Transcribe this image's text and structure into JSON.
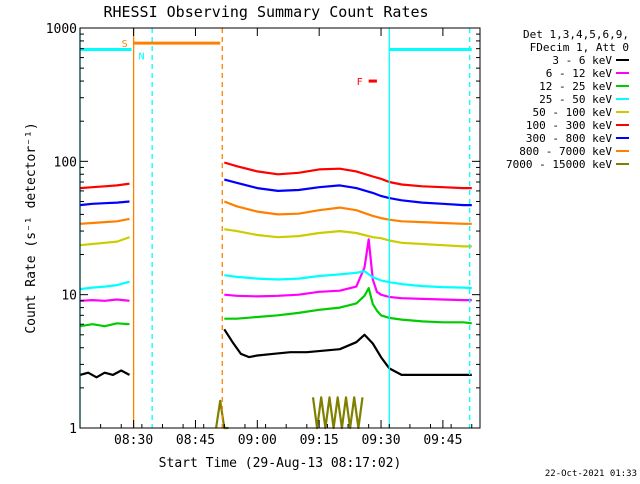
{
  "chart_data": {
    "type": "line",
    "title": "RHESSI Observing Summary Count Rates",
    "xlabel": "Start Time (29-Aug-13 08:17:02)",
    "ylabel": "Count Rate (s⁻¹ detector⁻¹)",
    "yscale": "log",
    "ylim": [
      1,
      1000
    ],
    "xlim": [
      "08:17",
      "09:54"
    ],
    "x_ticks": [
      {
        "label": "08:30",
        "min": 30
      },
      {
        "label": "08:45",
        "min": 45
      },
      {
        "label": "09:00",
        "min": 60
      },
      {
        "label": "09:15",
        "min": 75
      },
      {
        "label": "09:30",
        "min": 90
      },
      {
        "label": "09:45",
        "min": 105
      }
    ],
    "y_ticks": [
      "1",
      "10",
      "100",
      "1000"
    ],
    "legend": {
      "placement": "top-right outside",
      "header_lines": [
        "Det 1,3,4,5,6,9,",
        "FDecim 1, Att 0"
      ]
    },
    "series": [
      {
        "name": "3 - 6 keV",
        "color": "#000000",
        "segments": [
          {
            "x": [
              17,
              19,
              21,
              23,
              25,
              27,
              29
            ],
            "y": [
              2.5,
              2.6,
              2.4,
              2.6,
              2.5,
              2.7,
              2.5
            ]
          },
          {
            "x": [
              52,
              54,
              56,
              58,
              60,
              64,
              68,
              72,
              76,
              80,
              84,
              86,
              88,
              90,
              92,
              95,
              100,
              105,
              110,
              112
            ],
            "y": [
              5.5,
              4.4,
              3.6,
              3.4,
              3.5,
              3.6,
              3.7,
              3.7,
              3.8,
              3.9,
              4.4,
              5.0,
              4.3,
              3.4,
              2.8,
              2.5,
              2.5,
              2.5,
              2.5,
              2.5
            ]
          }
        ]
      },
      {
        "name": "6 - 12 keV",
        "color": "#ff00ff",
        "segments": [
          {
            "x": [
              17,
              20,
              23,
              26,
              29
            ],
            "y": [
              9.0,
              9.1,
              9.0,
              9.2,
              9.0
            ]
          },
          {
            "x": [
              52,
              55,
              60,
              65,
              70,
              75,
              80,
              84,
              86,
              87,
              88,
              89,
              90,
              92,
              95,
              100,
              105,
              110,
              112
            ],
            "y": [
              10.0,
              9.8,
              9.7,
              9.8,
              10.0,
              10.5,
              10.7,
              11.5,
              16.0,
              26.0,
              13.0,
              10.5,
              10.0,
              9.6,
              9.4,
              9.3,
              9.2,
              9.1,
              9.1
            ]
          }
        ]
      },
      {
        "name": "12 - 25 keV",
        "color": "#00cc00",
        "segments": [
          {
            "x": [
              17,
              20,
              23,
              26,
              29
            ],
            "y": [
              5.8,
              6.0,
              5.8,
              6.1,
              6.0
            ]
          },
          {
            "x": [
              52,
              55,
              60,
              65,
              70,
              75,
              80,
              84,
              86,
              87,
              88,
              89,
              90,
              92,
              95,
              100,
              105,
              110,
              112
            ],
            "y": [
              6.6,
              6.6,
              6.8,
              7.0,
              7.3,
              7.7,
              8.0,
              8.6,
              9.8,
              11.2,
              8.5,
              7.6,
              7.0,
              6.7,
              6.5,
              6.3,
              6.2,
              6.2,
              6.1
            ]
          }
        ]
      },
      {
        "name": "25 - 50 keV",
        "color": "#00ffff",
        "segments": [
          {
            "x": [
              17,
              20,
              23,
              26,
              29
            ],
            "y": [
              11.0,
              11.3,
              11.5,
              11.8,
              12.5
            ]
          },
          {
            "x": [
              52,
              55,
              60,
              65,
              70,
              75,
              80,
              84,
              86,
              88,
              90,
              92,
              95,
              100,
              105,
              110,
              112
            ],
            "y": [
              14.0,
              13.6,
              13.2,
              13.0,
              13.2,
              13.8,
              14.2,
              14.6,
              15.0,
              13.5,
              12.8,
              12.4,
              12.0,
              11.6,
              11.4,
              11.3,
              11.2
            ]
          }
        ]
      },
      {
        "name": "50 - 100 keV",
        "color": "#cccc00",
        "segments": [
          {
            "x": [
              17,
              20,
              23,
              26,
              29
            ],
            "y": [
              23.5,
              24.0,
              24.5,
              25.0,
              27.0
            ]
          },
          {
            "x": [
              52,
              55,
              60,
              65,
              70,
              75,
              80,
              84,
              88,
              90,
              92,
              95,
              100,
              105,
              110,
              112
            ],
            "y": [
              31.0,
              30.0,
              28.0,
              27.0,
              27.5,
              29.0,
              30.0,
              29.0,
              27.0,
              26.5,
              25.5,
              24.5,
              24.0,
              23.5,
              23.0,
              23.0
            ]
          }
        ]
      },
      {
        "name": "100 - 300 keV",
        "color": "#ff0000",
        "segments": [
          {
            "x": [
              17,
              20,
              23,
              26,
              29
            ],
            "y": [
              63.0,
              64.0,
              65.0,
              66.0,
              68.0
            ]
          },
          {
            "x": [
              52,
              55,
              60,
              65,
              70,
              75,
              80,
              84,
              88,
              90,
              92,
              95,
              100,
              105,
              110,
              112
            ],
            "y": [
              98.0,
              92.0,
              84.0,
              80.0,
              82.0,
              87.0,
              88.0,
              84.0,
              77.0,
              74.0,
              70.0,
              67.0,
              65.0,
              64.0,
              63.0,
              63.0
            ]
          }
        ]
      },
      {
        "name": "300 - 800 keV",
        "color": "#0000ff",
        "segments": [
          {
            "x": [
              17,
              20,
              23,
              26,
              29
            ],
            "y": [
              47.0,
              48.0,
              48.5,
              49.0,
              50.0
            ]
          },
          {
            "x": [
              52,
              55,
              60,
              65,
              70,
              75,
              80,
              84,
              88,
              90,
              92,
              95,
              100,
              105,
              110,
              112
            ],
            "y": [
              73.0,
              69.0,
              63.0,
              60.0,
              61.0,
              64.0,
              66.0,
              63.0,
              58.0,
              55.0,
              53.0,
              51.0,
              49.0,
              48.0,
              47.0,
              47.0
            ]
          }
        ]
      },
      {
        "name": "800 - 7000 keV",
        "color": "#ff8000",
        "segments": [
          {
            "x": [
              17,
              20,
              23,
              26,
              29
            ],
            "y": [
              34.0,
              34.5,
              35.0,
              35.5,
              37.0
            ]
          },
          {
            "x": [
              52,
              55,
              60,
              65,
              70,
              75,
              80,
              84,
              88,
              90,
              92,
              95,
              100,
              105,
              110,
              112
            ],
            "y": [
              50.0,
              46.0,
              42.0,
              40.0,
              40.5,
              43.0,
              45.0,
              43.0,
              39.0,
              37.5,
              36.5,
              35.5,
              35.0,
              34.5,
              34.0,
              34.0
            ]
          }
        ]
      },
      {
        "name": "7000 - 15000 keV",
        "color": "#808000",
        "segments": [
          {
            "x": [
              50,
              51,
              52,
              53
            ],
            "y": [
              1.0,
              1.6,
              1.0,
              1.0
            ]
          },
          {
            "x": [
              73.5,
              74.5,
              75.5,
              76.5,
              77.5,
              78.5,
              79.5,
              80.5,
              81.5,
              82.5,
              83.5,
              84.5,
              85.5
            ],
            "y": [
              1.7,
              1.0,
              1.7,
              1.0,
              1.7,
              1.0,
              1.7,
              1.0,
              1.7,
              1.0,
              1.7,
              1.0,
              1.7
            ]
          }
        ]
      }
    ],
    "flag_bars": [
      {
        "label": "S",
        "color": "#ff8000",
        "y": 770,
        "x": [
          30,
          51
        ]
      },
      {
        "label": "N",
        "color": "#00ffff",
        "y": 690,
        "x": [
          17,
          29.5
        ],
        "x2": [
          92,
          112
        ]
      },
      {
        "label": "F",
        "color": "#ff0000",
        "y": 400,
        "x": [
          87,
          89
        ]
      }
    ],
    "vertical_markers": [
      {
        "color": "#ff8000",
        "style": "solid",
        "x": 30
      },
      {
        "color": "#ff8000",
        "style": "dashed",
        "x": 51.5
      },
      {
        "color": "#00ffff",
        "style": "dashed",
        "x": 34.5
      },
      {
        "color": "#00ffff",
        "style": "solid",
        "x": 92
      },
      {
        "color": "#00ffff",
        "style": "dashed",
        "x": 111.5
      },
      {
        "color": "#00ffff",
        "style": "solid",
        "x": 17
      }
    ]
  },
  "footer": {
    "timestamp": "22-Oct-2021 01:33"
  }
}
